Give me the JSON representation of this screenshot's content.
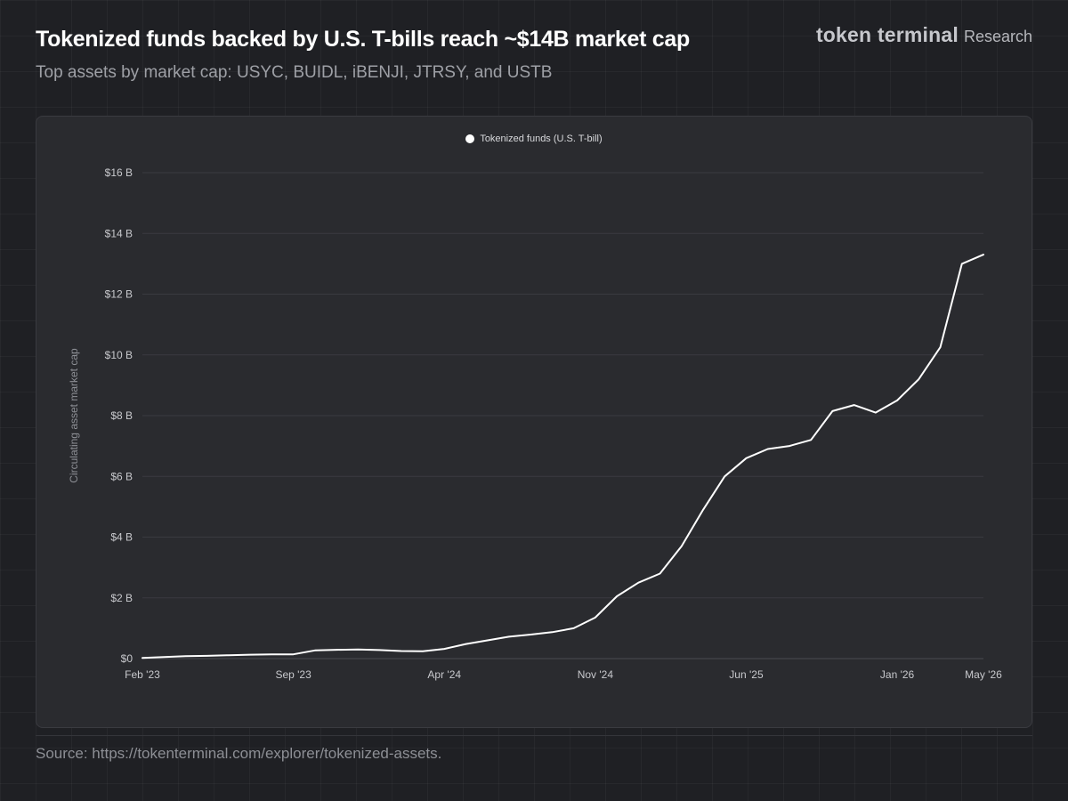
{
  "header": {
    "title": "Tokenized funds backed by U.S. T-bills reach ~$14B market cap",
    "subtitle": "Top assets by market cap: USYC, BUIDL, iBENJI, JTRSY, and USTB"
  },
  "brand": {
    "name": "token terminal",
    "suffix": "Research"
  },
  "footer": {
    "source": "Source: https://tokenterminal.com/explorer/tokenized-assets."
  },
  "colors": {
    "line": "#ffffff",
    "grid": "#3a3b40",
    "zero_line": "#4a4b50",
    "tick_label": "#c8c9cd",
    "axis_title": "#8d8f95"
  },
  "chart_data": {
    "type": "line",
    "title": "",
    "xlabel": "",
    "ylabel": "Circulating asset market cap",
    "legend_position": "top-center",
    "grid": true,
    "ylim": [
      0,
      16
    ],
    "y_ticks": [
      0,
      2,
      4,
      6,
      8,
      10,
      12,
      14,
      16
    ],
    "y_tick_labels": [
      "$0",
      "$2 B",
      "$4 B",
      "$6 B",
      "$8 B",
      "$10 B",
      "$12 B",
      "$14 B",
      "$16 B"
    ],
    "x_tick_labels": [
      "Feb '23",
      "Sep '23",
      "Apr '24",
      "Nov '24",
      "Jun '25",
      "Jan '26",
      "May '26"
    ],
    "x_tick_months": [
      "2023-02",
      "2023-09",
      "2024-04",
      "2024-11",
      "2025-06",
      "2026-01",
      "2026-05"
    ],
    "series": [
      {
        "name": "Tokenized funds (U.S. T-bill)",
        "x": [
          "2023-02",
          "2023-03",
          "2023-04",
          "2023-05",
          "2023-06",
          "2023-07",
          "2023-08",
          "2023-09",
          "2023-10",
          "2023-11",
          "2023-12",
          "2024-01",
          "2024-02",
          "2024-03",
          "2024-04",
          "2024-05",
          "2024-06",
          "2024-07",
          "2024-08",
          "2024-09",
          "2024-10",
          "2024-11",
          "2024-12",
          "2025-01",
          "2025-02",
          "2025-03",
          "2025-04",
          "2025-05",
          "2025-06",
          "2025-07",
          "2025-08",
          "2025-09",
          "2025-10",
          "2025-11",
          "2025-12",
          "2026-01",
          "2026-02",
          "2026-03",
          "2026-04",
          "2026-05"
        ],
        "values": [
          0.02,
          0.05,
          0.08,
          0.09,
          0.11,
          0.13,
          0.14,
          0.14,
          0.27,
          0.29,
          0.3,
          0.28,
          0.25,
          0.24,
          0.32,
          0.48,
          0.6,
          0.72,
          0.79,
          0.87,
          1.0,
          1.35,
          2.05,
          2.5,
          2.8,
          3.7,
          4.9,
          6.0,
          6.6,
          6.9,
          7.0,
          7.2,
          8.15,
          8.35,
          8.1,
          8.5,
          9.2,
          10.25,
          13.0,
          13.3
        ]
      }
    ]
  }
}
